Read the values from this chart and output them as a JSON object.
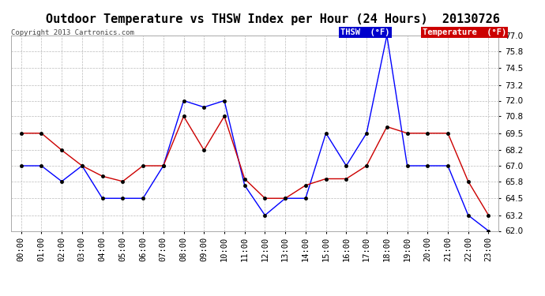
{
  "title": "Outdoor Temperature vs THSW Index per Hour (24 Hours)  20130726",
  "copyright": "Copyright 2013 Cartronics.com",
  "hours": [
    "00:00",
    "01:00",
    "02:00",
    "03:00",
    "04:00",
    "05:00",
    "06:00",
    "07:00",
    "08:00",
    "09:00",
    "10:00",
    "11:00",
    "12:00",
    "13:00",
    "14:00",
    "15:00",
    "16:00",
    "17:00",
    "18:00",
    "19:00",
    "20:00",
    "21:00",
    "22:00",
    "23:00"
  ],
  "thsw": [
    67.0,
    67.0,
    65.8,
    67.0,
    64.5,
    64.5,
    64.5,
    67.0,
    72.0,
    71.5,
    72.0,
    65.5,
    63.2,
    64.5,
    64.5,
    69.5,
    67.0,
    69.5,
    77.0,
    67.0,
    67.0,
    67.0,
    63.2,
    62.0
  ],
  "temperature": [
    69.5,
    69.5,
    68.2,
    67.0,
    66.2,
    65.8,
    67.0,
    67.0,
    70.8,
    68.2,
    70.8,
    66.0,
    64.5,
    64.5,
    65.5,
    66.0,
    66.0,
    67.0,
    70.0,
    69.5,
    69.5,
    69.5,
    65.8,
    63.2
  ],
  "thsw_color": "#0000ff",
  "temp_color": "#cc0000",
  "ylim_min": 62.0,
  "ylim_max": 77.0,
  "yticks": [
    62.0,
    63.2,
    64.5,
    65.8,
    67.0,
    68.2,
    69.5,
    70.8,
    72.0,
    73.2,
    74.5,
    75.8,
    77.0
  ],
  "background_color": "#ffffff",
  "grid_color": "#bbbbbb",
  "title_fontsize": 11,
  "tick_fontsize": 7.5,
  "copyright_fontsize": 6.5,
  "legend_thsw_bg": "#0000cc",
  "legend_temp_bg": "#cc0000",
  "legend_text_color": "#ffffff",
  "legend_thsw_label": "THSW  (°F)",
  "legend_temp_label": "Temperature  (°F)"
}
